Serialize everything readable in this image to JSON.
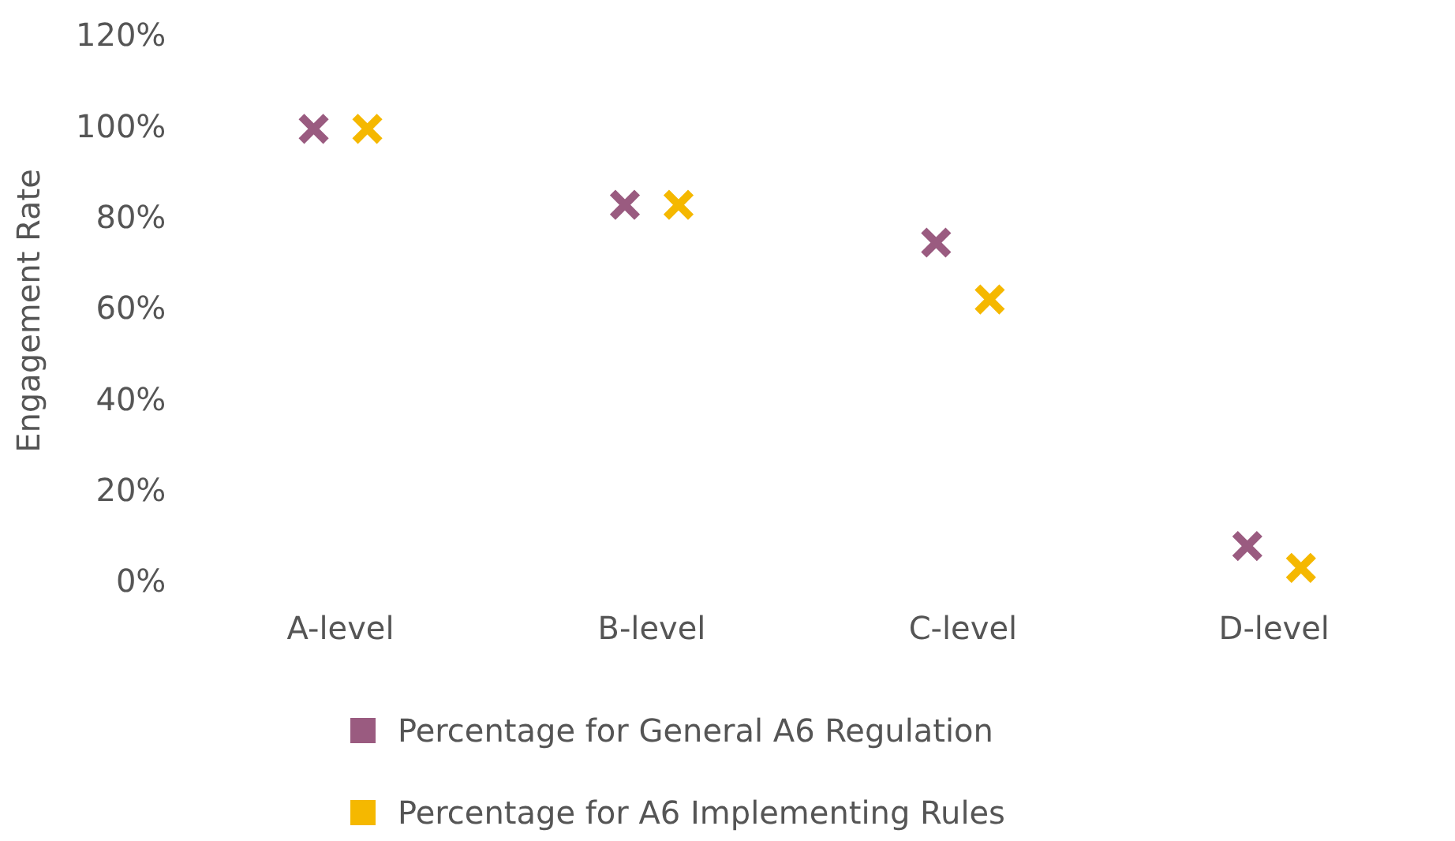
{
  "chart_data": {
    "type": "scatter",
    "ylabel": "Engagement Rate",
    "categories": [
      "A-level",
      "B-level",
      "C-level",
      "D-level"
    ],
    "series": [
      {
        "name": "Percentage for General A6 Regulation",
        "color": "#9a5b80",
        "values": [
          100,
          83.3,
          75,
          8.3
        ]
      },
      {
        "name": "Percentage for A6 Implementing Rules",
        "color": "#f5b800",
        "values": [
          100,
          83.3,
          62.5,
          3.5
        ]
      }
    ],
    "ylim": [
      0,
      120
    ],
    "yticks": [
      {
        "value": 0,
        "label": "0%"
      },
      {
        "value": 20,
        "label": "20%"
      },
      {
        "value": 40,
        "label": "40%"
      },
      {
        "value": 60,
        "label": "60%"
      },
      {
        "value": 80,
        "label": "80%"
      },
      {
        "value": 100,
        "label": "100%"
      },
      {
        "value": 120,
        "label": "120%"
      }
    ],
    "grid": false,
    "legend": "bottom",
    "marker": "cross"
  }
}
